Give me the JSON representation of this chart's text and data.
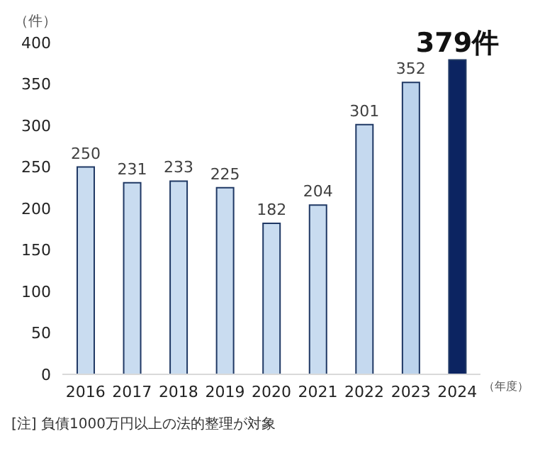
{
  "chart_data": {
    "type": "bar",
    "ylabel": "（件）",
    "xlabel": "（年度）",
    "categories": [
      "2016",
      "2017",
      "2018",
      "2019",
      "2020",
      "2021",
      "2022",
      "2023",
      "2024"
    ],
    "values": [
      250,
      231,
      233,
      225,
      182,
      204,
      301,
      352,
      379
    ],
    "colors": [
      "#c9dcf0",
      "#c9dcf0",
      "#c9dcf0",
      "#c9dcf0",
      "#c9dcf0",
      "#c9dcf0",
      "#c5d9ef",
      "#bcd3ec",
      "#0c2461"
    ],
    "value_labels": [
      "250",
      "231",
      "233",
      "225",
      "182",
      "204",
      "301",
      "352",
      "379件"
    ],
    "ylim": [
      0,
      400
    ],
    "yticks": [
      0,
      50,
      100,
      150,
      200,
      250,
      300,
      350,
      400
    ],
    "grid": false,
    "annotations": [
      "[注] 負債1000万円以上の法的整理が対象"
    ]
  }
}
